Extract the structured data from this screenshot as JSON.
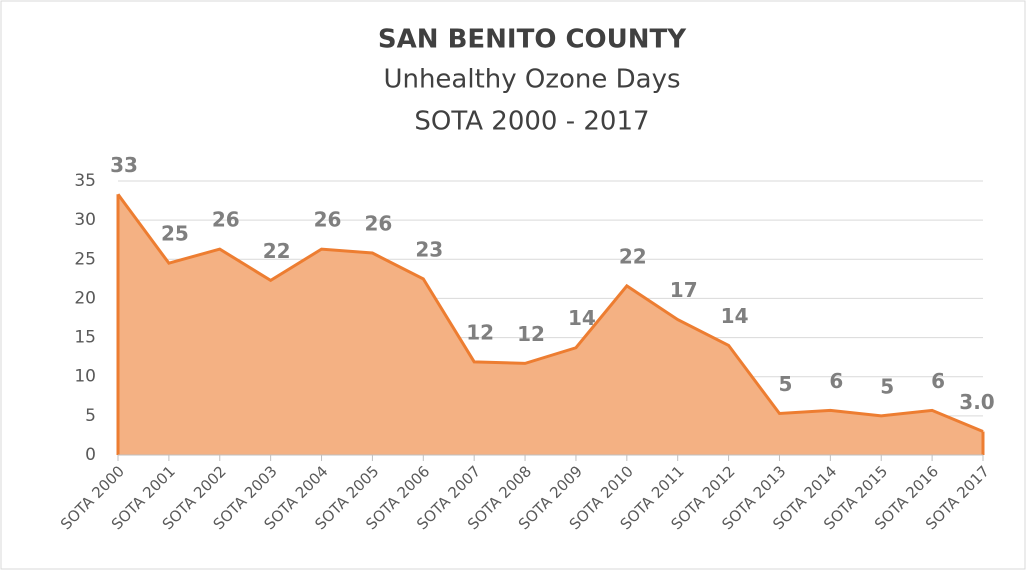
{
  "chart_data": {
    "type": "area",
    "title": "SAN BENITO COUNTY",
    "subtitle": [
      "Unhealthy Ozone Days",
      "SOTA 2000 - 2017"
    ],
    "categories": [
      "SOTA 2000",
      "SOTA 2001",
      "SOTA 2002",
      "SOTA 2003",
      "SOTA 2004",
      "SOTA 2005",
      "SOTA 2006",
      "SOTA 2007",
      "SOTA 2008",
      "SOTA 2009",
      "SOTA 2010",
      "SOTA 2011",
      "SOTA 2012",
      "SOTA 2013",
      "SOTA 2014",
      "SOTA 2015",
      "SOTA 2016",
      "SOTA 2017"
    ],
    "values": [
      33.3,
      24.5,
      26.3,
      22.3,
      26.3,
      25.8,
      22.5,
      11.9,
      11.7,
      13.7,
      21.6,
      17.3,
      14,
      5.3,
      5.7,
      5,
      5.7,
      3.0
    ],
    "value_labels": [
      "33",
      "25",
      "26",
      "22",
      "26",
      "26",
      "23",
      "12",
      "12",
      "14",
      "22",
      "17",
      "14",
      "5",
      "6",
      "5",
      "6",
      "3.0"
    ],
    "color": "#ed7d31",
    "fill": "#f4b183",
    "ylim": [
      0,
      35
    ],
    "yticks": [
      0,
      5,
      10,
      15,
      20,
      25,
      30,
      35
    ],
    "grid": true
  }
}
